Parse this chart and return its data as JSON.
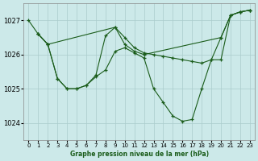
{
  "title": "Graphe pression niveau de la mer (hPa)",
  "background_color": "#cce9e9",
  "grid_color": "#aacccc",
  "line_color": "#1a5c1a",
  "xlim": [
    -0.5,
    23.5
  ],
  "ylim": [
    1023.5,
    1027.5
  ],
  "yticks": [
    1024,
    1025,
    1026,
    1027
  ],
  "xticks": [
    0,
    1,
    2,
    3,
    4,
    5,
    6,
    7,
    8,
    9,
    10,
    11,
    12,
    13,
    14,
    15,
    16,
    17,
    18,
    19,
    20,
    21,
    22,
    23
  ],
  "series1_x": [
    0,
    1,
    2,
    9,
    10,
    11,
    12,
    13,
    14,
    15,
    16,
    17,
    18,
    19,
    20,
    21,
    22,
    23
  ],
  "series1_y": [
    1027.0,
    1026.6,
    1026.3,
    1026.8,
    1026.5,
    1026.2,
    1026.05,
    1026.0,
    1025.95,
    1025.9,
    1025.85,
    1025.8,
    1025.75,
    1025.85,
    1026.5,
    1027.15,
    1027.25,
    1027.3
  ],
  "series2_x": [
    1,
    2,
    3,
    4,
    5,
    6,
    7,
    8,
    9,
    10,
    11,
    12,
    20,
    21,
    22,
    23
  ],
  "series2_y": [
    1026.6,
    1026.3,
    1025.3,
    1025.0,
    1025.0,
    1025.1,
    1025.4,
    1026.55,
    1026.8,
    1026.3,
    1026.1,
    1026.0,
    1026.5,
    1027.15,
    1027.25,
    1027.3
  ],
  "series3_x": [
    1,
    2,
    3,
    4,
    5,
    6,
    7,
    8,
    9,
    10,
    11,
    12,
    13,
    14,
    15,
    16,
    17,
    18,
    19,
    20,
    21,
    22,
    23
  ],
  "series3_y": [
    1026.6,
    1026.3,
    1025.3,
    1025.0,
    1025.0,
    1025.1,
    1025.35,
    1025.55,
    1026.1,
    1026.2,
    1026.05,
    1025.9,
    1025.0,
    1024.6,
    1024.2,
    1024.05,
    1024.1,
    1025.0,
    1025.85,
    1025.85,
    1027.15,
    1027.25,
    1027.3
  ]
}
